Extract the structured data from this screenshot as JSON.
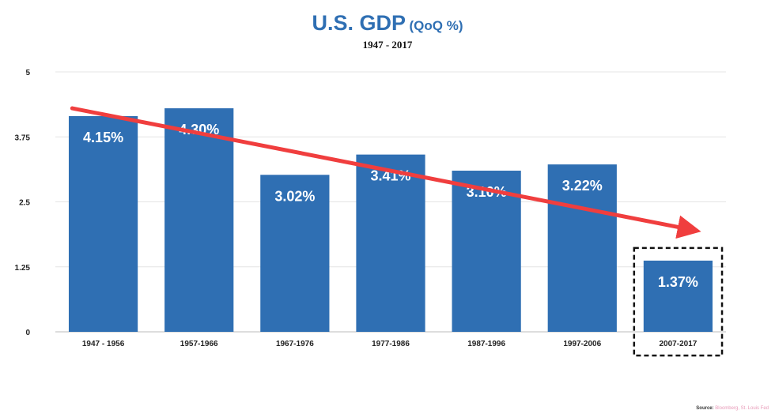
{
  "chart_data": {
    "type": "bar",
    "title": "U.S. GDP",
    "title_unit": "(QoQ %)",
    "subtitle": "1947 - 2017",
    "categories": [
      "1947 - 1956",
      "1957-1966",
      "1967-1976",
      "1977-1986",
      "1987-1996",
      "1997-2006",
      "2007-2017"
    ],
    "values": [
      4.15,
      4.3,
      3.02,
      3.41,
      3.1,
      3.22,
      1.37
    ],
    "data_labels": [
      "4.15%",
      "4.30%",
      "3.02%",
      "3.41%",
      "3.10%",
      "3.22%",
      "1.37%"
    ],
    "yticks": [
      0,
      1.25,
      2.5,
      3.75,
      5
    ],
    "ytick_labels": [
      "0",
      "1.25",
      "2.5",
      "3.75",
      "5"
    ],
    "ylim": [
      0,
      5
    ],
    "grid": true,
    "highlighted_category": "2007-2017",
    "trend_arrow": {
      "from_value": 4.3,
      "to_value": 1.95,
      "color": "#f03e3e"
    },
    "colors": {
      "bar": "#2f6fb3",
      "title": "#2f6fb3",
      "grid": "#e4e4e4"
    }
  },
  "source": {
    "label": "Source:",
    "text": "Bloomberg, St. Louis Fed"
  }
}
